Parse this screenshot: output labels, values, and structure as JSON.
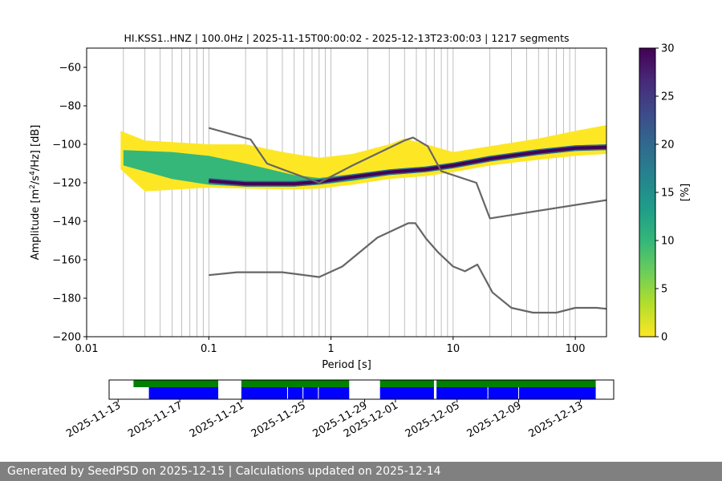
{
  "chart_data": [
    {
      "type": "heatmap",
      "title": "HI.KSS1..HNZ | 100.0Hz | 2025-11-15T00:00:02 - 2025-12-13T23:00:03 | 1217 segments",
      "xlabel": "Period [s]",
      "ylabel_parts": [
        "Amplitude [m",
        "2",
        "/s",
        "4",
        "/Hz] [dB]"
      ],
      "x_scale": "log",
      "xlim": [
        0.01,
        180
      ],
      "ylim": [
        -200,
        -50
      ],
      "x_ticks": [
        {
          "value": 0.01,
          "label": "0.01"
        },
        {
          "value": 0.1,
          "label": "0.1"
        },
        {
          "value": 1,
          "label": "1"
        },
        {
          "value": 10,
          "label": "10"
        },
        {
          "value": 100,
          "label": "100"
        }
      ],
      "y_ticks": [
        {
          "value": -60,
          "label": "−60"
        },
        {
          "value": -80,
          "label": "−80"
        },
        {
          "value": -100,
          "label": "−100"
        },
        {
          "value": -120,
          "label": "−120"
        },
        {
          "value": -140,
          "label": "−140"
        },
        {
          "value": -160,
          "label": "−160"
        },
        {
          "value": -180,
          "label": "−180"
        },
        {
          "value": -200,
          "label": "−200"
        }
      ],
      "grid_x": "major and minor vertical lines",
      "colormap": "viridis_r",
      "colorbar": {
        "label": "[%]",
        "range": [
          0,
          30
        ],
        "ticks": [
          {
            "value": 0,
            "label": "0"
          },
          {
            "value": 5,
            "label": "5"
          },
          {
            "value": 10,
            "label": "10"
          },
          {
            "value": 15,
            "label": "15"
          },
          {
            "value": 20,
            "label": "20"
          },
          {
            "value": 25,
            "label": "25"
          },
          {
            "value": 30,
            "label": "30"
          }
        ],
        "colors": [
          "#fde725",
          "#b5de2b",
          "#6ece58",
          "#35b779",
          "#1f9e89",
          "#26828e",
          "#31688e",
          "#3e4989",
          "#482878",
          "#440154"
        ]
      },
      "series": [
        {
          "kind": "density_ridge",
          "color": "#440154",
          "points": [
            [
              0.1,
              -119
            ],
            [
              0.2,
              -120.5
            ],
            [
              0.5,
              -120.5
            ],
            [
              0.8,
              -119.5
            ],
            [
              1.5,
              -117
            ],
            [
              3,
              -114.5
            ],
            [
              6,
              -113
            ],
            [
              10,
              -111
            ],
            [
              20,
              -107.5
            ],
            [
              50,
              -104
            ],
            [
              100,
              -102
            ],
            [
              180,
              -101.5
            ]
          ]
        },
        {
          "kind": "density_band",
          "color": "#35b779",
          "upper": [
            [
              0.02,
              -103
            ],
            [
              0.05,
              -104
            ],
            [
              0.1,
              -106
            ],
            [
              0.2,
              -110
            ],
            [
              0.5,
              -116
            ],
            [
              0.8,
              -117.5
            ],
            [
              1.5,
              -115.5
            ],
            [
              3,
              -113
            ],
            [
              6,
              -111.5
            ],
            [
              10,
              -109.5
            ],
            [
              20,
              -106
            ],
            [
              50,
              -102.5
            ],
            [
              100,
              -100.5
            ],
            [
              180,
              -100
            ]
          ],
          "lower": [
            [
              0.02,
              -111
            ],
            [
              0.05,
              -118
            ],
            [
              0.1,
              -121
            ],
            [
              0.2,
              -122
            ],
            [
              0.5,
              -122
            ],
            [
              0.8,
              -121
            ],
            [
              1.5,
              -119
            ],
            [
              3,
              -116
            ],
            [
              6,
              -114.5
            ],
            [
              10,
              -112.5
            ],
            [
              20,
              -109
            ],
            [
              50,
              -105.5
            ],
            [
              100,
              -103.5
            ],
            [
              180,
              -103
            ]
          ]
        },
        {
          "kind": "density_band",
          "color": "#fde725",
          "upper": [
            [
              0.019,
              -93
            ],
            [
              0.03,
              -98
            ],
            [
              0.1,
              -100
            ],
            [
              0.2,
              -100
            ],
            [
              0.4,
              -104
            ],
            [
              0.8,
              -107
            ],
            [
              1.5,
              -105
            ],
            [
              3,
              -100
            ],
            [
              4,
              -97
            ],
            [
              6,
              -100
            ],
            [
              10,
              -104
            ],
            [
              20,
              -101
            ],
            [
              50,
              -97
            ],
            [
              100,
              -93
            ],
            [
              180,
              -90
            ]
          ],
          "lower": [
            [
              0.019,
              -113
            ],
            [
              0.03,
              -124.5
            ],
            [
              0.1,
              -122.5
            ],
            [
              0.2,
              -123
            ],
            [
              0.5,
              -123.5
            ],
            [
              0.8,
              -123
            ],
            [
              1.5,
              -121
            ],
            [
              3,
              -118
            ],
            [
              6,
              -116.5
            ],
            [
              10,
              -114.5
            ],
            [
              20,
              -111
            ],
            [
              50,
              -108
            ],
            [
              100,
              -106
            ],
            [
              180,
              -105
            ]
          ]
        },
        {
          "kind": "line",
          "color": "#666666",
          "points": [
            [
              0.1,
              -91.5
            ],
            [
              0.22,
              -97.5
            ],
            [
              0.3,
              -110
            ],
            [
              0.4,
              -113
            ],
            [
              0.8,
              -120
            ],
            [
              1.5,
              -111
            ],
            [
              4.0,
              -98
            ],
            [
              4.7,
              -96.5
            ],
            [
              6.2,
              -101
            ],
            [
              8.0,
              -114
            ],
            [
              15.5,
              -120
            ],
            [
              20,
              -138.5
            ],
            [
              180,
              -129
            ]
          ]
        },
        {
          "kind": "line",
          "color": "#666666",
          "points": [
            [
              0.1,
              -168
            ],
            [
              0.17,
              -166.5
            ],
            [
              0.4,
              -166.5
            ],
            [
              0.8,
              -169
            ],
            [
              1.24,
              -163.5
            ],
            [
              2.4,
              -148.5
            ],
            [
              4.3,
              -141
            ],
            [
              4.9,
              -141
            ],
            [
              6.0,
              -149
            ],
            [
              7.5,
              -156
            ],
            [
              10,
              -163.5
            ],
            [
              12.5,
              -166
            ],
            [
              15.8,
              -162.5
            ],
            [
              21,
              -177
            ],
            [
              30,
              -185
            ],
            [
              45,
              -187.5
            ],
            [
              70,
              -187.5
            ],
            [
              100,
              -185
            ],
            [
              150,
              -185
            ],
            [
              180,
              -185.5
            ]
          ]
        }
      ]
    },
    {
      "type": "timeline",
      "x_ticks": [
        {
          "value": "2025-11-13",
          "label": "2025-11-13"
        },
        {
          "value": "2025-11-17",
          "label": "2025-11-17"
        },
        {
          "value": "2025-11-21",
          "label": "2025-11-21"
        },
        {
          "value": "2025-11-25",
          "label": "2025-11-25"
        },
        {
          "value": "2025-11-29",
          "label": "2025-11-29"
        },
        {
          "value": "2025-12-01",
          "label": "2025-12-01"
        },
        {
          "value": "2025-12-05",
          "label": "2025-12-05"
        },
        {
          "value": "2025-12-09",
          "label": "2025-12-09"
        },
        {
          "value": "2025-12-13",
          "label": "2025-12-13"
        }
      ],
      "xlim": [
        "2025-11-12T10:00",
        "2025-12-15T04:00"
      ],
      "green_segments": [
        {
          "start": "2025-11-14T00:00",
          "end": "2025-11-19T12:00"
        },
        {
          "start": "2025-11-21T00:00",
          "end": "2025-11-28T00:00"
        },
        {
          "start": "2025-11-30T00:00",
          "end": "2025-12-03T12:00"
        },
        {
          "start": "2025-12-03T16:00",
          "end": "2025-12-14T00:00"
        }
      ],
      "blue_segments": [
        {
          "start": "2025-11-15T00:00",
          "end": "2025-11-19T12:00"
        },
        {
          "start": "2025-11-21T00:00",
          "end": "2025-11-28T00:00"
        },
        {
          "start": "2025-11-30T00:00",
          "end": "2025-12-03T12:00"
        },
        {
          "start": "2025-12-03T16:00",
          "end": "2025-12-14T00:00"
        }
      ],
      "blue_gaps": [
        "2025-11-24T00:00",
        "2025-11-25T00:00",
        "2025-11-26T00:00",
        "2025-12-07T00:00",
        "2025-12-09T00:00"
      ],
      "green_color": "#008000",
      "blue_color": "#0000ff"
    }
  ],
  "footer": {
    "text": "Generated by SeedPSD on 2025-12-15 | Calculations updated on 2025-12-14"
  }
}
